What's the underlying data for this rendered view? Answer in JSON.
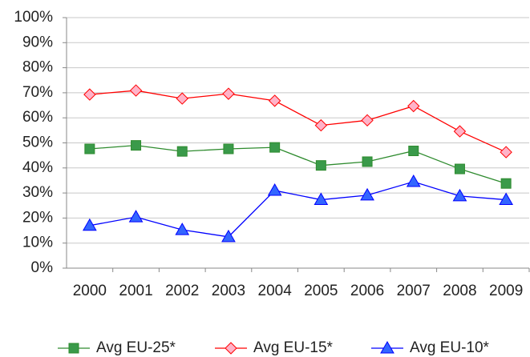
{
  "chart_data": {
    "type": "line",
    "categories": [
      "2000",
      "2001",
      "2002",
      "2003",
      "2004",
      "2005",
      "2006",
      "2007",
      "2008",
      "2009"
    ],
    "series": [
      {
        "name": "Avg EU-25*",
        "color": "#2e8b2e",
        "marker_fill": "#3a9a4a",
        "marker": "square",
        "values": [
          47.6,
          49,
          46.6,
          47.6,
          48.2,
          41,
          42.5,
          46.8,
          39.6,
          33.8
        ]
      },
      {
        "name": "Avg EU-15*",
        "color": "#ff0000",
        "marker_fill": "#ffb3c8",
        "marker": "diamond",
        "values": [
          69.3,
          70.9,
          67.7,
          69.6,
          66.8,
          57,
          59,
          64.7,
          54.6,
          46.3
        ]
      },
      {
        "name": "Avg EU-10*",
        "color": "#0000ff",
        "marker_fill": "#3366ff",
        "marker": "triangle",
        "values": [
          17,
          20.4,
          15.3,
          12.5,
          31,
          27.3,
          29.1,
          34.5,
          28.8,
          27.3
        ]
      }
    ],
    "ylim": [
      0,
      100
    ],
    "yticks": [
      {
        "value": 0,
        "label": "0%"
      },
      {
        "value": 10,
        "label": "10%"
      },
      {
        "value": 20,
        "label": "20%"
      },
      {
        "value": 30,
        "label": "30%"
      },
      {
        "value": 40,
        "label": "40%"
      },
      {
        "value": 50,
        "label": "50%"
      },
      {
        "value": 60,
        "label": "60%"
      },
      {
        "value": 70,
        "label": "70%"
      },
      {
        "value": 80,
        "label": "80%"
      },
      {
        "value": 90,
        "label": "90%"
      },
      {
        "value": 100,
        "label": "100%"
      }
    ],
    "grid": true
  }
}
